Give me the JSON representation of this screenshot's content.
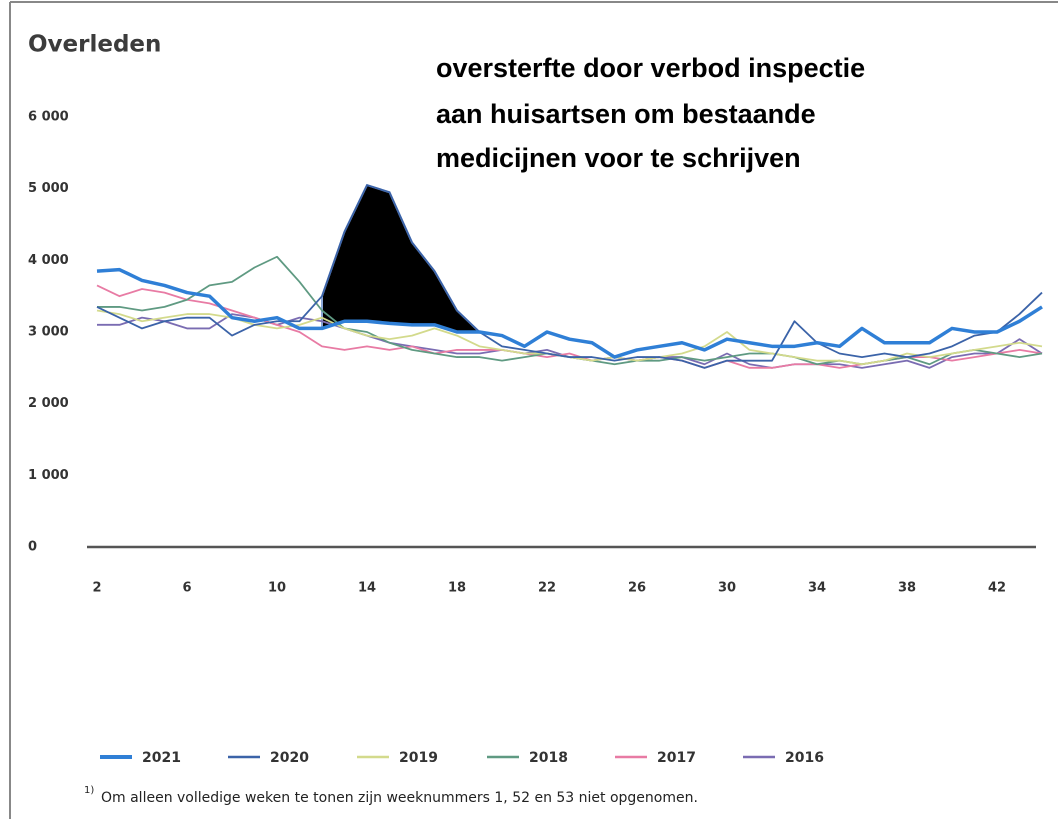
{
  "chart_data": {
    "type": "line",
    "title": "Overleden",
    "annotation": [
      "oversterfte door verbod inspectie",
      "aan huisartsen om bestaande",
      "medicijnen voor te schrijven"
    ],
    "footnote_marker": "1)",
    "footnote": "Om alleen volledige weken te tonen zijn weeknummers 1, 52 en 53 niet opgenomen.",
    "x": [
      2,
      3,
      4,
      5,
      6,
      7,
      8,
      9,
      10,
      11,
      12,
      13,
      14,
      15,
      16,
      17,
      18,
      19,
      20,
      21,
      22,
      23,
      24,
      25,
      26,
      27,
      28,
      29,
      30,
      31,
      32,
      33,
      34,
      35,
      36,
      37,
      38,
      39,
      40,
      41,
      42,
      43,
      44
    ],
    "xlim": [
      2,
      44
    ],
    "xticks": [
      2,
      6,
      10,
      14,
      18,
      22,
      26,
      30,
      34,
      38,
      42
    ],
    "ylim": [
      0,
      6000
    ],
    "yticks": [
      0,
      {
        "value": 1000,
        "label": "1 000"
      },
      {
        "value": 2000,
        "label": "2 000"
      },
      {
        "value": 3000,
        "label": "3 000"
      },
      {
        "value": 4000,
        "label": "4 000"
      },
      {
        "value": 5000,
        "label": "5 000"
      },
      {
        "value": 6000,
        "label": "6 000"
      }
    ],
    "grid": false,
    "legend": "bottom",
    "series": [
      {
        "name": "2021",
        "color": "#2f7fd6",
        "values": [
          3850,
          3870,
          3720,
          3650,
          3550,
          3500,
          3200,
          3150,
          3200,
          3050,
          3050,
          3150,
          3150,
          3120,
          3100,
          3100,
          3000,
          3000,
          2950,
          2800,
          3000,
          2900,
          2850,
          2650,
          2750,
          2800,
          2850,
          2750,
          2900,
          2850,
          2800,
          2800,
          2850,
          2800,
          3050,
          2850,
          2850,
          2850,
          3050,
          3000,
          3000,
          3150,
          3350
        ]
      },
      {
        "name": "2020",
        "color": "#3b63a8",
        "values": [
          3350,
          3200,
          3050,
          3150,
          3200,
          3200,
          2950,
          3100,
          3150,
          3150,
          3500,
          4400,
          5050,
          4950,
          4250,
          3850,
          3300,
          3000,
          2800,
          2750,
          2700,
          2650,
          2650,
          2600,
          2650,
          2650,
          2600,
          2500,
          2600,
          2600,
          2600,
          3150,
          2850,
          2700,
          2650,
          2700,
          2650,
          2700,
          2800,
          2950,
          3000,
          3250,
          3550
        ]
      },
      {
        "name": "2019",
        "color": "#d3da8c",
        "values": [
          3300,
          3250,
          3150,
          3200,
          3250,
          3250,
          3200,
          3100,
          3050,
          3100,
          3200,
          3050,
          2950,
          2900,
          2950,
          3050,
          2950,
          2800,
          2750,
          2700,
          2700,
          2650,
          2600,
          2650,
          2600,
          2650,
          2700,
          2800,
          3000,
          2750,
          2700,
          2650,
          2600,
          2600,
          2550,
          2600,
          2700,
          2650,
          2700,
          2750,
          2800,
          2850,
          2800
        ]
      },
      {
        "name": "2018",
        "color": "#5f9a82",
        "values": [
          3350,
          3350,
          3300,
          3350,
          3450,
          3650,
          3700,
          3900,
          4050,
          3700,
          3300,
          3050,
          3000,
          2850,
          2750,
          2700,
          2650,
          2650,
          2600,
          2650,
          2700,
          2650,
          2600,
          2550,
          2600,
          2600,
          2650,
          2600,
          2650,
          2700,
          2700,
          2650,
          2550,
          2600,
          2550,
          2600,
          2650,
          2550,
          2700,
          2750,
          2700,
          2650,
          2700
        ]
      },
      {
        "name": "2017",
        "color": "#e87ba4",
        "values": [
          3650,
          3500,
          3600,
          3550,
          3450,
          3400,
          3300,
          3200,
          3100,
          3000,
          2800,
          2750,
          2800,
          2750,
          2800,
          2700,
          2750,
          2750,
          2750,
          2700,
          2650,
          2700,
          2600,
          2650,
          2600,
          2650,
          2600,
          2500,
          2600,
          2500,
          2500,
          2550,
          2550,
          2500,
          2550,
          2600,
          2650,
          2650,
          2600,
          2650,
          2700,
          2750,
          2700
        ]
      },
      {
        "name": "2016",
        "color": "#7a6cb2",
        "values": [
          3100,
          3100,
          3200,
          3150,
          3050,
          3050,
          3250,
          3200,
          3100,
          3200,
          3150,
          3050,
          2950,
          2850,
          2800,
          2750,
          2700,
          2700,
          2750,
          2700,
          2750,
          2650,
          2600,
          2650,
          2600,
          2650,
          2650,
          2550,
          2700,
          2550,
          2500,
          2550,
          2550,
          2550,
          2500,
          2550,
          2600,
          2500,
          2650,
          2700,
          2700,
          2900,
          2700
        ]
      }
    ]
  }
}
